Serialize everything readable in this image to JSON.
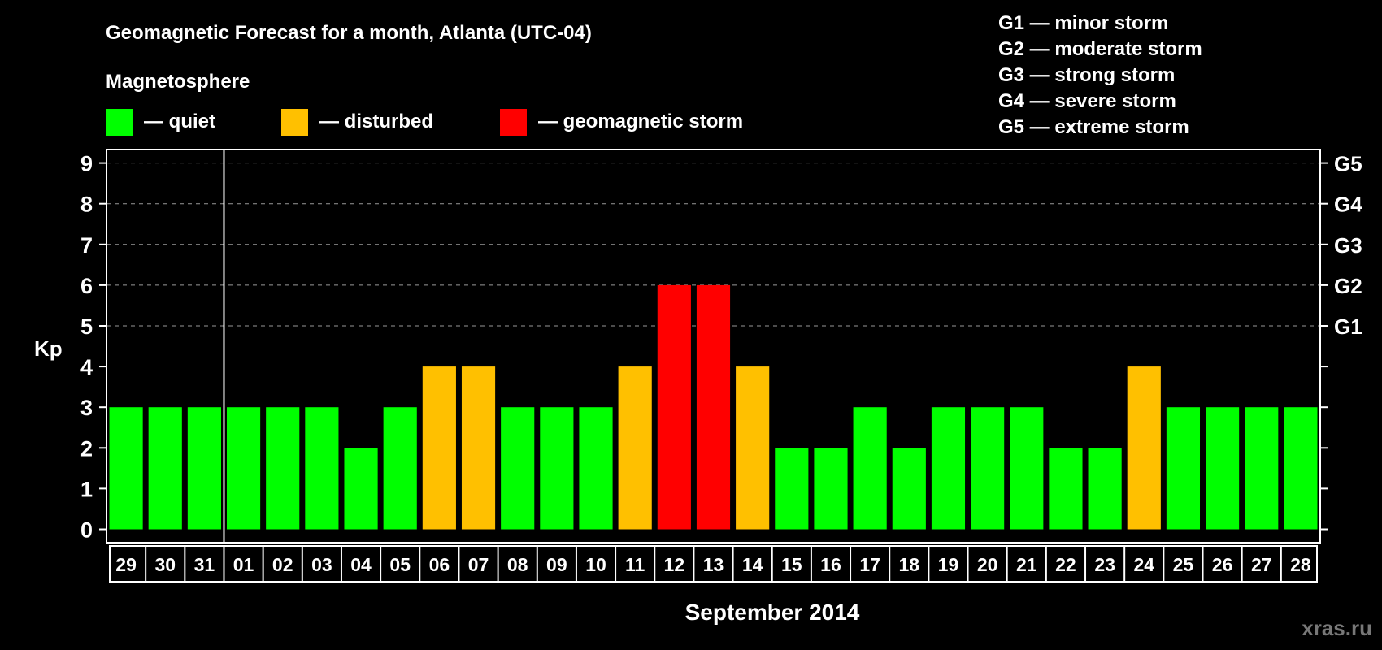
{
  "chart_data": {
    "type": "bar",
    "title": "Geomagnetic Forecast for a month, Atlanta (UTC-04)",
    "subtitle": "Magnetosphere",
    "xlabel": "September 2014",
    "ylabel": "Kp",
    "ylim": [
      0,
      9
    ],
    "yticks": [
      "0",
      "1",
      "2",
      "3",
      "4",
      "5",
      "6",
      "7",
      "8",
      "9"
    ],
    "right_ticks": [
      {
        "kp": 5,
        "label": "G1"
      },
      {
        "kp": 6,
        "label": "G2"
      },
      {
        "kp": 7,
        "label": "G3"
      },
      {
        "kp": 8,
        "label": "G4"
      },
      {
        "kp": 9,
        "label": "G5"
      }
    ],
    "grid": true,
    "categories": [
      "29",
      "30",
      "31",
      "01",
      "02",
      "03",
      "04",
      "05",
      "06",
      "07",
      "08",
      "09",
      "10",
      "11",
      "12",
      "13",
      "14",
      "15",
      "16",
      "17",
      "18",
      "19",
      "20",
      "21",
      "22",
      "23",
      "24",
      "25",
      "26",
      "27",
      "28"
    ],
    "values": [
      3,
      3,
      3,
      3,
      3,
      3,
      2,
      3,
      4,
      4,
      3,
      3,
      3,
      4,
      6,
      6,
      4,
      2,
      2,
      3,
      2,
      3,
      3,
      3,
      2,
      2,
      4,
      3,
      3,
      3,
      3
    ],
    "month_separator_after_index": 2,
    "colors": {
      "quiet": "#00ff00",
      "disturbed": "#ffc000",
      "storm": "#ff0000"
    },
    "legend": [
      {
        "key": "quiet",
        "label": "— quiet"
      },
      {
        "key": "disturbed",
        "label": "— disturbed"
      },
      {
        "key": "storm",
        "label": "— geomagnetic storm"
      }
    ],
    "storm_scale": [
      "G1 — minor storm",
      "G2 — moderate storm",
      "G3 — strong storm",
      "G4 — severe storm",
      "G5 — extreme storm"
    ]
  },
  "watermark": "xras.ru"
}
